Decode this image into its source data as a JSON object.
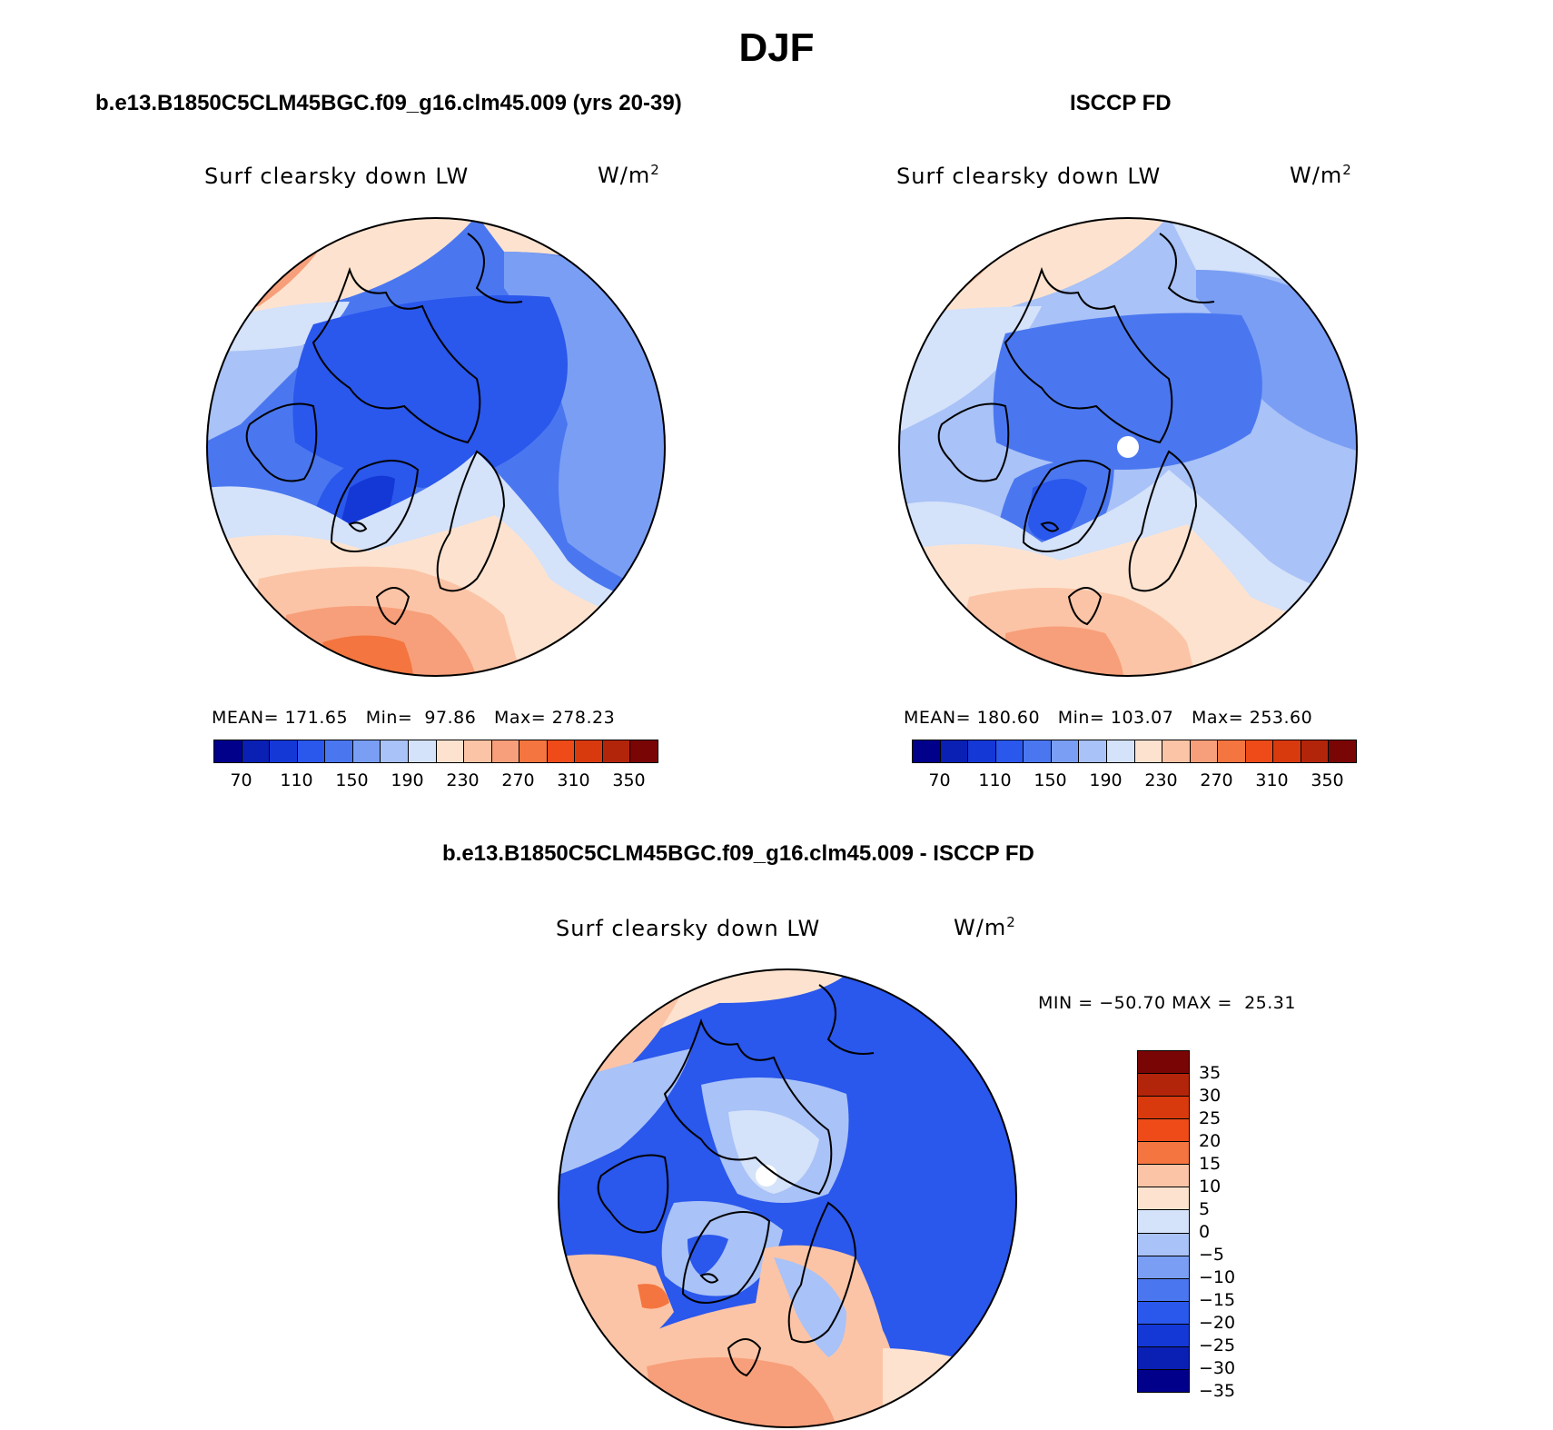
{
  "figure": {
    "title": "DJF"
  },
  "panels": [
    {
      "id": "model",
      "title": "b.e13.B1850C5CLM45BGC.f09_g16.clm45.009 (yrs 20-39)",
      "variable": "Surf clearsky down LW",
      "units_base": "W/m",
      "units_sup": "2",
      "stats": {
        "mean_label": "MEAN=",
        "mean": "171.65",
        "min_label": "Min=",
        "min": "97.86",
        "max_label": "Max=",
        "max": "278.23"
      }
    },
    {
      "id": "obs",
      "title": "ISCCP FD",
      "variable": "Surf clearsky down LW",
      "units_base": "W/m",
      "units_sup": "2",
      "stats": {
        "mean_label": "MEAN=",
        "mean": "180.60",
        "min_label": "Min=",
        "min": "103.07",
        "max_label": "Max=",
        "max": "253.60"
      }
    },
    {
      "id": "diff",
      "title": "b.e13.B1850C5CLM45BGC.f09_g16.clm45.009 - ISCCP FD",
      "variable": "Surf clearsky down LW",
      "units_base": "W/m",
      "units_sup": "2",
      "stats": {
        "min_label": "MIN =",
        "min": "−50.70",
        "max_label": "MAX =",
        "max": "25.31"
      }
    }
  ],
  "colorbars": {
    "absolute": {
      "colors": [
        "#00008b",
        "#0a1fb3",
        "#1438d6",
        "#2a57ec",
        "#4a77f0",
        "#7a9ef4",
        "#a9c2f7",
        "#d4e2fa",
        "#fde3cf",
        "#fcc4a6",
        "#f79f7a",
        "#f4753f",
        "#ee4b18",
        "#d83a0e",
        "#b3250a",
        "#7a0505"
      ],
      "labels": [
        "70",
        "110",
        "150",
        "190",
        "230",
        "270",
        "310",
        "350"
      ]
    },
    "difference": {
      "colors": [
        "#7a0505",
        "#b3250a",
        "#d83a0e",
        "#ee4b18",
        "#f4753f",
        "#fcc4a6",
        "#fde3cf",
        "#d4e2fa",
        "#a9c2f7",
        "#7a9ef4",
        "#4a77f0",
        "#2a57ec",
        "#1438d6",
        "#0a1fb3",
        "#00008b"
      ],
      "labels": [
        "35",
        "30",
        "25",
        "20",
        "15",
        "10",
        "5",
        "0",
        "−5",
        "−10",
        "−15",
        "−20",
        "−25",
        "−30",
        "−35"
      ]
    }
  }
}
